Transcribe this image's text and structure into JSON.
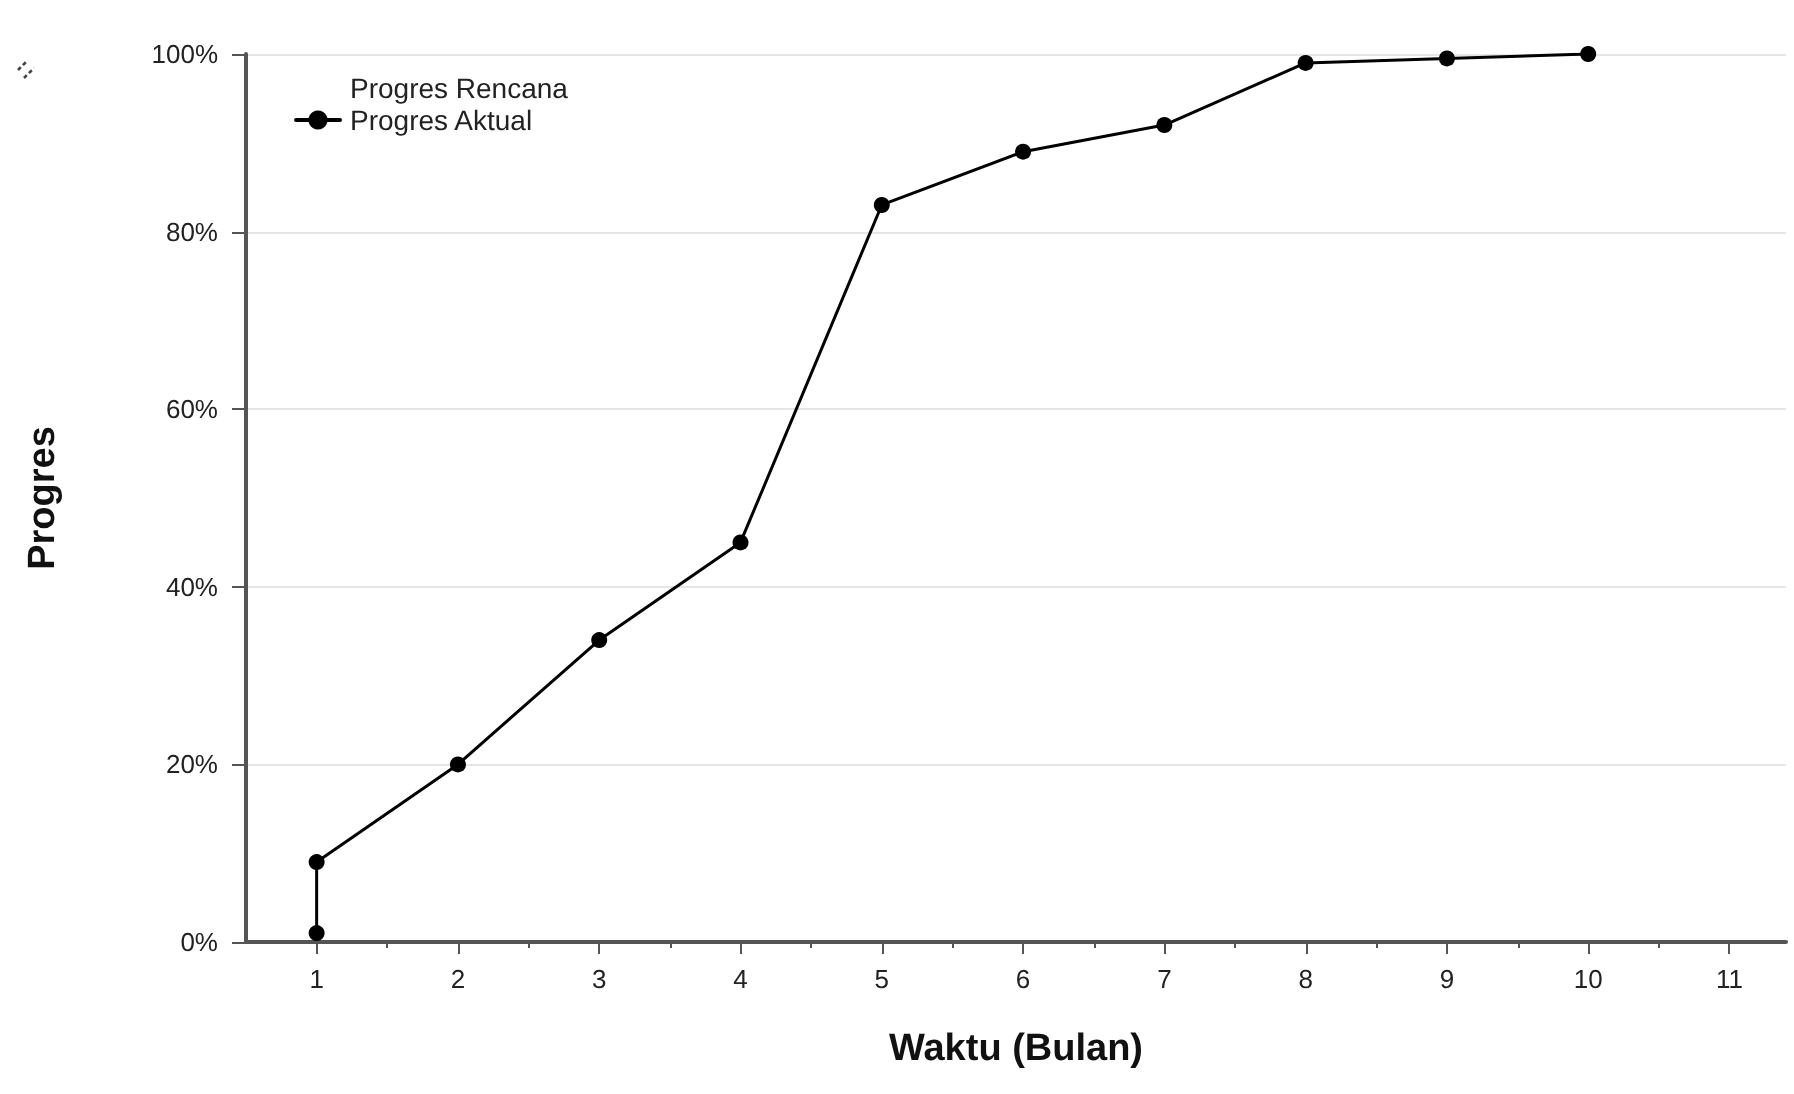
{
  "chart_data": {
    "type": "line",
    "xlabel": "Waktu (Bulan)",
    "ylabel": "Progres",
    "series": [
      {
        "name": "Progres Rencana",
        "marker": "none",
        "values": [
          null,
          null,
          null,
          null,
          null,
          null,
          null,
          null,
          null,
          null
        ]
      },
      {
        "name": "Progres Aktual",
        "color": "#000000",
        "marker": "circle",
        "x": [
          1,
          1,
          2,
          3,
          4,
          5,
          6,
          7,
          8,
          9,
          10
        ],
        "values": [
          1,
          9,
          20,
          34,
          45,
          83,
          89,
          92,
          99,
          99.5,
          100
        ]
      }
    ],
    "xlim": [
      0.5,
      11.4
    ],
    "xticks": [
      1,
      2,
      3,
      4,
      5,
      6,
      7,
      8,
      9,
      10,
      11
    ],
    "ylim": [
      0,
      100
    ],
    "yticks": [
      {
        "value": 0,
        "label": "0%"
      },
      {
        "value": 20,
        "label": "20%"
      },
      {
        "value": 40,
        "label": "40%"
      },
      {
        "value": 60,
        "label": "60%"
      },
      {
        "value": 80,
        "label": "80%"
      },
      {
        "value": 100,
        "label": "100%"
      }
    ],
    "grid": "y",
    "legend": "top left",
    "line_style": "solid"
  }
}
